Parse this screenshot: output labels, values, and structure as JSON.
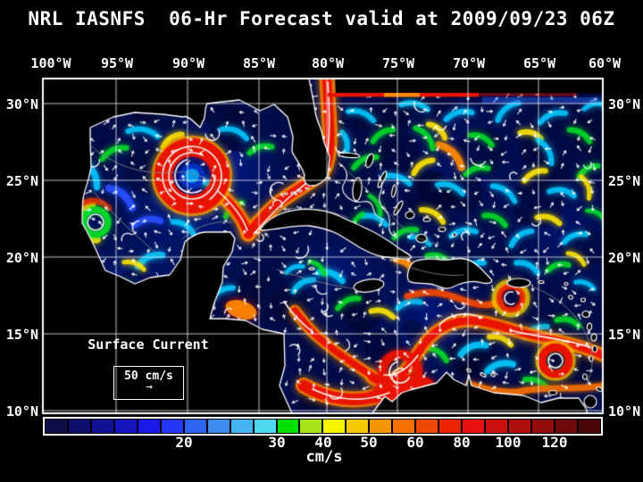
{
  "title": "NRL IASNFS  06-Hr Forecast valid at 2009/09/23 06Z",
  "axes": {
    "lon_labels": [
      "100°W",
      "95°W",
      "90°W",
      "85°W",
      "80°W",
      "75°W",
      "70°W",
      "65°W",
      "60°W"
    ],
    "lat_labels": [
      "30°N",
      "25°N",
      "20°N",
      "15°N",
      "10°N"
    ]
  },
  "annotation": {
    "label": "Surface Current",
    "scale_label": "50 cm/s",
    "arrow_icon": "→"
  },
  "colorbar": {
    "tick_labels": [
      "20",
      "30",
      "40",
      "50",
      "60",
      "80",
      "100",
      "120"
    ],
    "tick_values": [
      20,
      30,
      40,
      50,
      60,
      80,
      100,
      120
    ],
    "unit": "cm/s",
    "cell_colors": [
      "#0d0d4a",
      "#0d0d6e",
      "#111194",
      "#1515bd",
      "#1a1ae8",
      "#2438fa",
      "#2e64f5",
      "#3c8cf0",
      "#46b4f0",
      "#50d7f0",
      "#00e000",
      "#a8e619",
      "#f5f500",
      "#f5c800",
      "#f59600",
      "#f57000",
      "#f04800",
      "#ee2400",
      "#e81010",
      "#cc1010",
      "#b00d0d",
      "#940b0b",
      "#700909",
      "#4a0707"
    ]
  },
  "map_colors": {
    "ocean_base": "#000c4a",
    "land": "#000000",
    "coastline": "#ffffff",
    "grid": "#ffffff",
    "bathymetry": "#8a8a8a"
  }
}
